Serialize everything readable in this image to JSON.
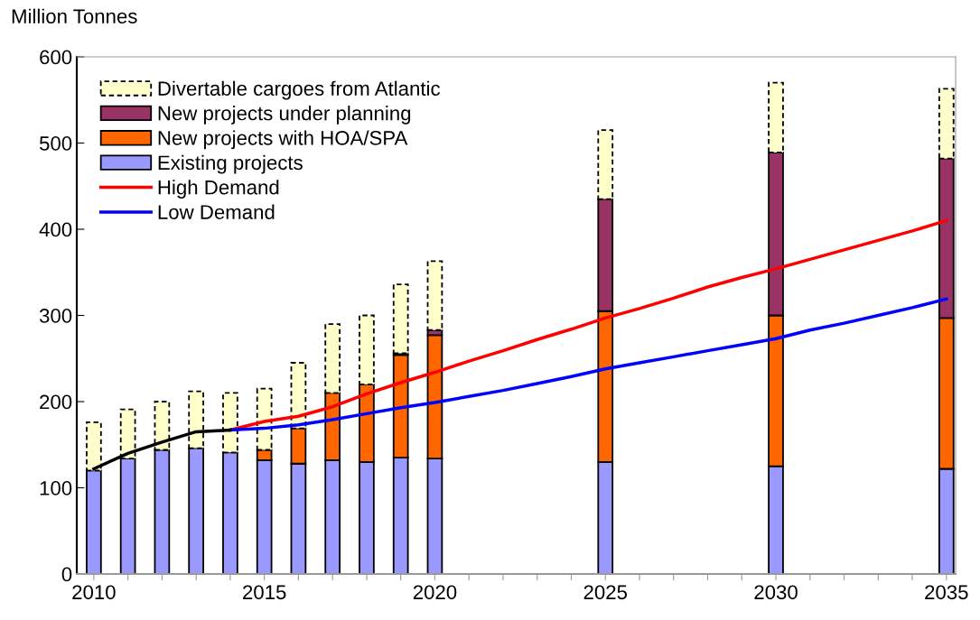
{
  "chart_data": {
    "type": "bar",
    "stacked": true,
    "ylabel": "Million Tonnes",
    "x": [
      2010,
      2011,
      2012,
      2013,
      2014,
      2015,
      2016,
      2017,
      2018,
      2019,
      2020,
      2025,
      2030,
      2035
    ],
    "series": [
      {
        "name": "Existing projects",
        "color": "#9999ff",
        "values": [
          120,
          134,
          144,
          146,
          141,
          132,
          128,
          132,
          130,
          135,
          134,
          130,
          125,
          122
        ]
      },
      {
        "name": "New projects with HOA/SPA",
        "color": "#ff6600",
        "values": [
          null,
          null,
          null,
          null,
          null,
          12,
          41,
          78,
          90,
          119,
          143,
          175,
          175,
          175
        ]
      },
      {
        "name": "New projects under planning",
        "color": "#993366",
        "values": [
          null,
          null,
          null,
          null,
          null,
          null,
          null,
          null,
          null,
          2,
          6,
          130,
          189,
          185
        ]
      },
      {
        "name": "Divertable cargoes from Atlantic",
        "color": "#ffffcc",
        "line_style": "dashed",
        "values": [
          56,
          57,
          56,
          66,
          69,
          71,
          76,
          80,
          80,
          80,
          80,
          80,
          81,
          81
        ]
      },
      {
        "name": "High Demand",
        "type": "line",
        "color": "#ff0000",
        "x": [
          2014,
          2015,
          2016,
          2017,
          2018,
          2019,
          2020,
          2021,
          2022,
          2023,
          2024,
          2025,
          2026,
          2027,
          2028,
          2029,
          2030,
          2031,
          2032,
          2033,
          2034,
          2035
        ],
        "values": [
          167,
          177,
          183,
          194,
          209,
          222,
          234,
          247,
          259,
          272,
          284,
          297,
          308,
          320,
          333,
          344,
          354,
          365,
          376,
          387,
          398,
          410
        ]
      },
      {
        "name": "Low Demand",
        "type": "line",
        "color": "#0000ff",
        "x": [
          2014,
          2015,
          2016,
          2017,
          2018,
          2019,
          2020,
          2021,
          2022,
          2023,
          2024,
          2025,
          2026,
          2027,
          2028,
          2029,
          2030,
          2031,
          2032,
          2033,
          2034,
          2035
        ],
        "values": [
          167,
          169,
          173,
          179,
          186,
          193,
          199,
          206,
          213,
          221,
          229,
          238,
          245,
          252,
          259,
          266,
          273,
          283,
          291,
          300,
          309,
          319
        ]
      },
      {
        "type": "line",
        "color": "#000000",
        "x": [
          2010,
          2011,
          2012,
          2013,
          2014
        ],
        "values": [
          122,
          140,
          153,
          165,
          167
        ]
      }
    ],
    "xlim": [
      2009.5,
      2035.27
    ],
    "xticks": [
      2010,
      {
        "value": 2011,
        "label": null
      },
      {
        "value": 2012,
        "label": null
      },
      {
        "value": 2013,
        "label": null
      },
      {
        "value": 2014,
        "label": null
      },
      2015,
      {
        "value": 2016,
        "label": null
      },
      {
        "value": 2017,
        "label": null
      },
      {
        "value": 2018,
        "label": null
      },
      {
        "value": 2019,
        "label": null
      },
      2020,
      {
        "value": 2021,
        "label": null
      },
      {
        "value": 2022,
        "label": null
      },
      {
        "value": 2023,
        "label": null
      },
      {
        "value": 2024,
        "label": null
      },
      2025,
      {
        "value": 2026,
        "label": null
      },
      {
        "value": 2027,
        "label": null
      },
      {
        "value": 2028,
        "label": null
      },
      {
        "value": 2029,
        "label": null
      },
      2030,
      {
        "value": 2031,
        "label": null
      },
      {
        "value": 2032,
        "label": null
      },
      {
        "value": 2033,
        "label": null
      },
      {
        "value": 2034,
        "label": null
      },
      2035
    ],
    "ylim": [
      0,
      600
    ],
    "yticks": [
      0,
      100,
      200,
      300,
      400,
      500,
      600
    ],
    "grid": false,
    "legend": "top left"
  }
}
